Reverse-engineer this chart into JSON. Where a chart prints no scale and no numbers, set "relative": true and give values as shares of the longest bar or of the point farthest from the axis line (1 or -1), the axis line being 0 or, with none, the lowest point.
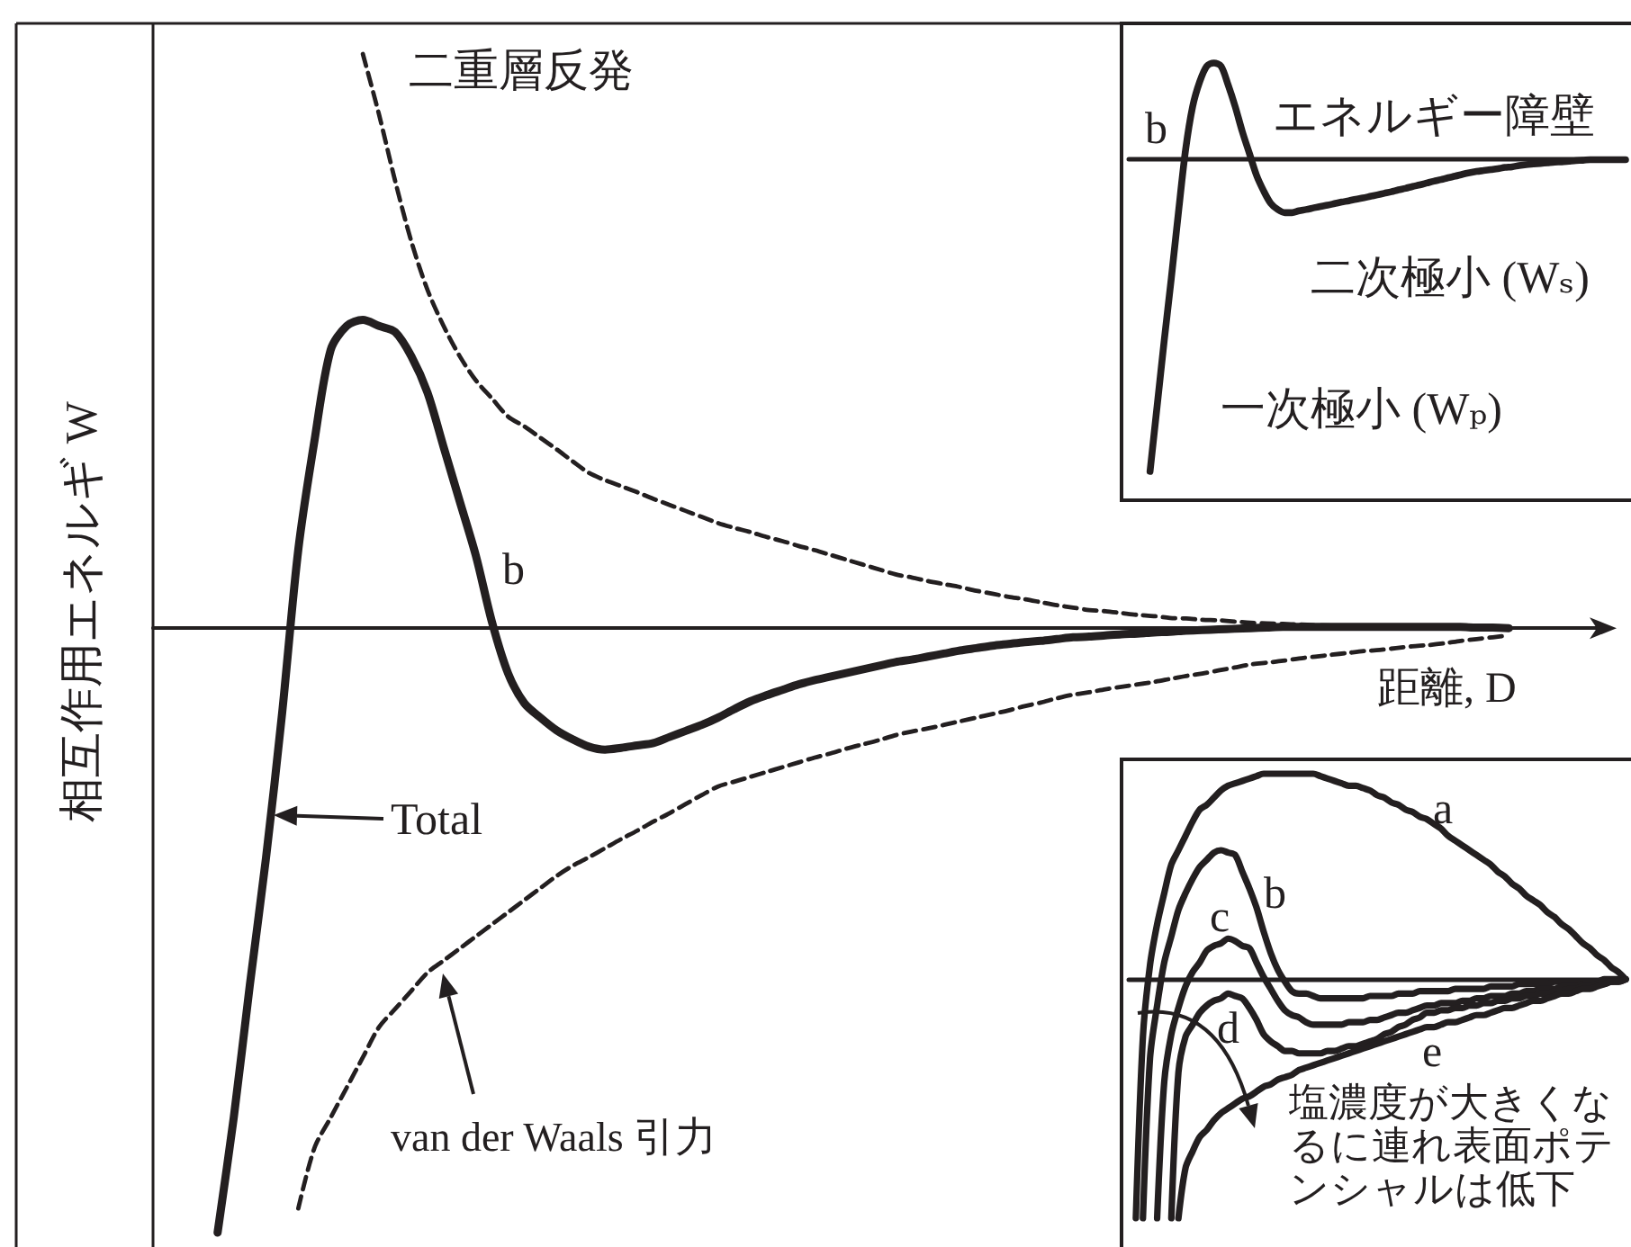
{
  "chart_data": [
    {
      "type": "line",
      "relative": true,
      "xlabel": "距離, D",
      "ylabel": "相互作用エネルギ W",
      "categories": [
        null,
        null,
        null,
        null,
        null,
        null,
        null,
        null,
        null,
        null,
        null,
        null,
        null,
        null,
        null,
        null,
        null,
        null,
        null,
        null,
        null,
        null,
        null,
        null,
        null,
        null,
        null,
        null,
        null,
        null,
        null,
        null,
        null,
        null,
        null,
        null,
        null,
        null,
        null,
        null,
        null,
        null,
        null,
        null,
        null,
        null,
        null,
        null,
        null,
        null,
        null,
        null,
        null,
        null,
        null,
        null,
        null,
        null,
        null,
        null,
        null,
        null,
        null,
        null,
        null,
        null,
        null,
        null,
        null,
        null,
        null,
        null,
        null,
        null,
        null,
        null,
        null,
        null,
        null,
        null,
        null,
        null,
        null,
        null,
        null,
        null,
        null,
        null,
        null,
        null,
        null
      ],
      "series": [
        {
          "name": "二重層反発",
          "color": "#231f20",
          "line_style": "dashed",
          "values": [
            null,
            null,
            null,
            null,
            null,
            null,
            null,
            null,
            null,
            null,
            null,
            null,
            null,
            0.95,
            0.85,
            0.74,
            0.64,
            0.56,
            0.5,
            0.45,
            0.41,
            0.38,
            0.35,
            0.334,
            0.315,
            0.296,
            0.276,
            0.257,
            0.245,
            0.235,
            0.225,
            0.214,
            0.204,
            0.194,
            0.184,
            0.174,
            0.166,
            0.159,
            0.151,
            0.144,
            0.136,
            0.129,
            0.121,
            0.113,
            0.105,
            0.097,
            0.089,
            0.084,
            0.078,
            0.073,
            0.068,
            0.062,
            0.057,
            0.052,
            0.048,
            0.043,
            0.038,
            0.034,
            0.03,
            0.028,
            0.025,
            0.022,
            0.02,
            0.017,
            0.016,
            0.014,
            0.013,
            0.011,
            0.009,
            0.008,
            0.007,
            0.006,
            0.005,
            0.004,
            0.003,
            0.003,
            0.002,
            0.001,
            0.001,
            0,
            0,
            0,
            0,
            0,
            0,
            null,
            null,
            null,
            null,
            null,
            null
          ]
        },
        {
          "name": "van der Waals 引力",
          "color": "#231f20",
          "line_style": "dashed",
          "values": [
            null,
            null,
            null,
            null,
            null,
            null,
            null,
            null,
            null,
            -0.96,
            -0.86,
            -0.81,
            -0.76,
            -0.71,
            -0.66,
            -0.63,
            -0.6,
            -0.57,
            -0.55,
            -0.53,
            -0.51,
            -0.49,
            -0.47,
            -0.45,
            -0.43,
            -0.41,
            -0.393,
            -0.379,
            -0.364,
            -0.349,
            -0.335,
            -0.32,
            -0.306,
            -0.291,
            -0.276,
            -0.262,
            -0.254,
            -0.246,
            -0.238,
            -0.23,
            -0.222,
            -0.214,
            -0.207,
            -0.199,
            -0.192,
            -0.185,
            -0.177,
            -0.171,
            -0.166,
            -0.16,
            -0.154,
            -0.148,
            -0.142,
            -0.136,
            -0.129,
            -0.123,
            -0.116,
            -0.11,
            -0.106,
            -0.101,
            -0.097,
            -0.093,
            -0.089,
            -0.084,
            -0.079,
            -0.075,
            -0.07,
            -0.065,
            -0.06,
            -0.057,
            -0.054,
            -0.05,
            -0.047,
            -0.044,
            -0.041,
            -0.038,
            -0.036,
            -0.033,
            -0.03,
            -0.028,
            -0.025,
            -0.021,
            -0.018,
            -0.015,
            -0.012,
            null,
            null,
            null,
            null,
            null,
            null
          ]
        },
        {
          "name": "Total",
          "color": "#231f20",
          "values": [
            null,
            null,
            null,
            null,
            -1,
            -0.81,
            -0.59,
            -0.38,
            -0.14,
            0.13,
            0.31,
            0.46,
            0.5,
            0.51,
            0.5,
            0.49,
            0.45,
            0.39,
            0.3,
            0.21,
            0.12,
            0.01,
            -0.075,
            -0.124,
            -0.148,
            -0.169,
            -0.184,
            -0.196,
            -0.201,
            -0.198,
            -0.194,
            -0.19,
            -0.18,
            -0.17,
            -0.16,
            -0.148,
            -0.134,
            -0.121,
            -0.111,
            -0.102,
            -0.093,
            -0.086,
            -0.08,
            -0.074,
            -0.068,
            -0.062,
            -0.056,
            -0.052,
            -0.047,
            -0.042,
            -0.037,
            -0.033,
            -0.029,
            -0.026,
            -0.023,
            -0.021,
            -0.018,
            -0.015,
            -0.014,
            -0.012,
            -0.01,
            -0.009,
            -0.007,
            -0.006,
            -0.004,
            -0.003,
            -0.002,
            -0.001,
            0,
            0.001,
            0.002,
            0.002,
            0.002,
            0.002,
            0.002,
            0.002,
            0.002,
            0.002,
            0.002,
            0.002,
            0.002,
            0.002,
            0.001,
            0.001,
            0,
            null,
            null,
            null,
            null,
            null,
            null
          ]
        }
      ],
      "annotations": [
        "b"
      ]
    },
    {
      "type": "line",
      "relative": true,
      "categories": [
        null,
        null,
        null,
        null,
        null,
        null,
        null,
        null,
        null,
        null,
        null,
        null,
        null,
        null,
        null,
        null,
        null,
        null,
        null,
        null,
        null,
        null,
        null,
        null,
        null,
        null,
        null,
        null,
        null,
        null,
        null,
        null,
        null,
        null,
        null,
        null,
        null,
        null,
        null,
        null,
        null,
        null,
        null,
        null,
        null,
        null,
        null,
        null,
        null,
        null,
        null,
        null,
        null,
        null,
        null,
        null,
        null,
        null,
        null,
        null,
        null,
        null,
        null,
        null,
        null,
        null,
        null,
        null,
        null,
        null,
        null
      ],
      "series": [
        {
          "name": "b",
          "color": "#231f20",
          "values": [
            null,
            null,
            null,
            -1,
            -0.79,
            -0.58,
            -0.38,
            -0.17,
            0.03,
            0.17,
            0.25,
            0.3,
            0.31,
            0.3,
            0.24,
            0.17,
            0.09,
            0.02,
            -0.05,
            -0.1,
            -0.14,
            -0.16,
            -0.17,
            -0.17,
            -0.164,
            -0.16,
            -0.155,
            -0.15,
            -0.146,
            -0.141,
            -0.136,
            -0.132,
            -0.127,
            -0.123,
            -0.118,
            -0.113,
            -0.108,
            -0.103,
            -0.097,
            -0.092,
            -0.086,
            -0.081,
            -0.075,
            -0.069,
            -0.064,
            -0.058,
            -0.053,
            -0.047,
            -0.042,
            -0.038,
            -0.035,
            -0.032,
            -0.029,
            -0.025,
            -0.023,
            -0.019,
            -0.016,
            -0.014,
            -0.012,
            -0.01,
            -0.008,
            -0.007,
            -0.005,
            -0.003,
            -0.002,
            0,
            0,
            0,
            0,
            0,
            0
          ]
        }
      ],
      "annotations": [
        "エネルギー障壁",
        "二次極小 (Wₛ)",
        "一次極小 (Wₚ)"
      ]
    },
    {
      "type": "line",
      "relative": true,
      "categories": [
        null,
        null,
        null,
        null,
        null,
        null,
        null,
        null,
        null,
        null,
        null,
        null,
        null,
        null,
        null,
        null,
        null,
        null,
        null,
        null,
        null,
        null,
        null,
        null,
        null,
        null,
        null,
        null,
        null,
        null,
        null,
        null,
        null,
        null,
        null,
        null,
        null,
        null,
        null,
        null,
        null,
        null,
        null,
        null,
        null,
        null,
        null,
        null,
        null,
        null,
        null,
        null,
        null,
        null,
        null,
        null,
        null,
        null,
        null,
        null,
        null,
        null,
        null,
        null,
        null,
        null,
        null,
        null,
        null,
        null,
        null
      ],
      "series": [
        {
          "name": "a",
          "color": "#231f20",
          "values": [
            null,
            -1,
            -0.24,
            0.06,
            0.23,
            0.36,
            0.48,
            0.54,
            0.6,
            0.66,
            0.71,
            0.73,
            0.76,
            0.79,
            0.81,
            0.82,
            0.83,
            0.84,
            0.85,
            0.86,
            0.86,
            0.86,
            0.86,
            0.86,
            0.86,
            0.86,
            0.86,
            0.85,
            0.84,
            0.83,
            0.82,
            0.81,
            0.81,
            0.8,
            0.79,
            0.77,
            0.76,
            0.74,
            0.73,
            0.71,
            0.7,
            0.68,
            0.67,
            0.65,
            0.63,
            0.6,
            0.58,
            0.56,
            0.54,
            0.52,
            0.5,
            0.48,
            0.45,
            0.43,
            0.4,
            0.38,
            0.35,
            0.33,
            0.31,
            0.28,
            0.26,
            0.23,
            0.21,
            0.18,
            0.15,
            0.13,
            0.1,
            0.08,
            0.05,
            0.03,
            0
          ]
        },
        {
          "name": "b",
          "color": "#231f20",
          "values": [
            null,
            null,
            -1,
            -0.33,
            -0.11,
            0.07,
            0.18,
            0.29,
            0.36,
            0.42,
            0.47,
            0.5,
            0.53,
            0.54,
            0.53,
            0.52,
            0.45,
            0.38,
            0.3,
            0.2,
            0.11,
            0.04,
            -0.01,
            -0.05,
            -0.06,
            -0.06,
            -0.07,
            -0.08,
            -0.08,
            -0.08,
            -0.08,
            -0.08,
            -0.08,
            -0.08,
            -0.07,
            -0.07,
            -0.07,
            -0.07,
            -0.06,
            -0.06,
            -0.06,
            -0.05,
            -0.05,
            -0.05,
            -0.05,
            -0.05,
            -0.04,
            -0.04,
            -0.04,
            -0.04,
            -0.04,
            -0.03,
            -0.03,
            -0.03,
            -0.03,
            -0.02,
            -0.02,
            -0.02,
            -0.02,
            -0.02,
            -0.01,
            -0.01,
            -0.01,
            -0.01,
            -0.01,
            -0.01,
            -0.01,
            0,
            0,
            0,
            0
          ]
        },
        {
          "name": "c",
          "color": "#231f20",
          "values": [
            null,
            null,
            null,
            null,
            -1,
            -0.43,
            -0.23,
            -0.12,
            -0.03,
            0.03,
            0.07,
            0.12,
            0.14,
            0.15,
            0.17,
            0.16,
            0.14,
            0.13,
            0.07,
            0.01,
            -0.04,
            -0.09,
            -0.13,
            -0.15,
            -0.16,
            -0.18,
            -0.19,
            -0.19,
            -0.19,
            -0.19,
            -0.19,
            -0.18,
            -0.18,
            -0.18,
            -0.17,
            -0.17,
            -0.16,
            -0.15,
            -0.14,
            -0.14,
            -0.13,
            -0.12,
            -0.11,
            -0.11,
            -0.1,
            -0.1,
            -0.1,
            -0.09,
            -0.09,
            -0.08,
            -0.08,
            -0.07,
            -0.07,
            -0.07,
            -0.06,
            -0.06,
            -0.05,
            -0.05,
            -0.04,
            -0.04,
            -0.04,
            -0.03,
            -0.03,
            -0.03,
            -0.02,
            -0.02,
            -0.02,
            -0.01,
            -0.01,
            0,
            0
          ]
        },
        {
          "name": "d",
          "color": "#231f20",
          "values": [
            null,
            null,
            null,
            null,
            null,
            null,
            -1,
            -0.39,
            -0.24,
            -0.19,
            -0.14,
            -0.11,
            -0.09,
            -0.08,
            -0.06,
            -0.07,
            -0.08,
            -0.12,
            -0.17,
            -0.23,
            -0.26,
            -0.28,
            -0.3,
            -0.3,
            -0.31,
            -0.31,
            -0.31,
            -0.31,
            -0.3,
            -0.3,
            -0.29,
            -0.28,
            -0.28,
            -0.27,
            -0.26,
            -0.25,
            -0.23,
            -0.22,
            -0.2,
            -0.19,
            -0.17,
            -0.16,
            -0.14,
            -0.14,
            -0.13,
            -0.13,
            -0.12,
            -0.12,
            -0.11,
            -0.11,
            -0.1,
            -0.1,
            -0.09,
            -0.09,
            -0.08,
            -0.08,
            -0.07,
            -0.07,
            -0.06,
            -0.06,
            -0.05,
            -0.05,
            -0.04,
            -0.04,
            -0.03,
            -0.03,
            -0.02,
            -0.02,
            -0.01,
            -0.01,
            0
          ]
        },
        {
          "name": "e",
          "color": "#231f20",
          "values": [
            null,
            null,
            null,
            null,
            null,
            null,
            null,
            -1,
            -0.79,
            -0.72,
            -0.66,
            -0.63,
            -0.59,
            -0.56,
            -0.54,
            -0.52,
            -0.5,
            -0.49,
            -0.47,
            -0.45,
            -0.44,
            -0.42,
            -0.41,
            -0.4,
            -0.38,
            -0.37,
            -0.36,
            -0.35,
            -0.34,
            -0.33,
            -0.32,
            -0.31,
            -0.3,
            -0.29,
            -0.28,
            -0.27,
            -0.26,
            -0.25,
            -0.24,
            -0.23,
            -0.22,
            -0.21,
            -0.2,
            -0.2,
            -0.19,
            -0.18,
            -0.18,
            -0.17,
            -0.16,
            -0.15,
            -0.15,
            -0.14,
            -0.13,
            -0.12,
            -0.12,
            -0.11,
            -0.1,
            -0.09,
            -0.09,
            -0.08,
            -0.07,
            -0.06,
            -0.06,
            -0.05,
            -0.04,
            -0.04,
            -0.03,
            -0.02,
            -0.01,
            -0.01,
            0
          ]
        }
      ],
      "annotations": [
        "塩濃度が大きくなるに連れ表面ポテンシャルは低下"
      ]
    }
  ]
}
